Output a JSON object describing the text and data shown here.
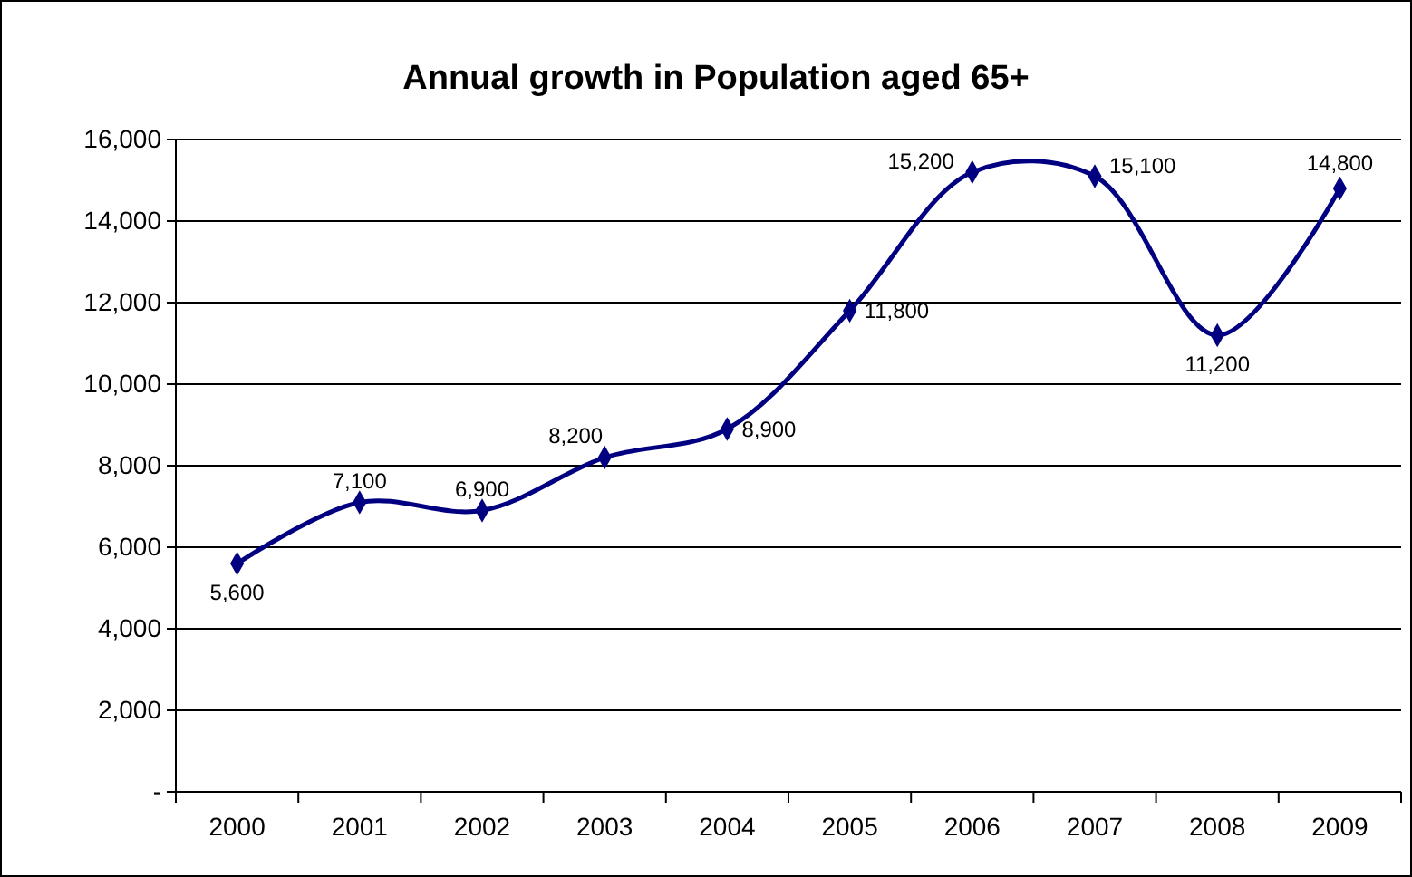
{
  "chart_data": {
    "type": "line",
    "title": "Annual growth in Population aged 65+",
    "categories": [
      "2000",
      "2001",
      "2002",
      "2003",
      "2004",
      "2005",
      "2006",
      "2007",
      "2008",
      "2009"
    ],
    "series": [
      {
        "color": "#000080",
        "values": [
          5600,
          7100,
          6900,
          8200,
          8900,
          11800,
          15200,
          15100,
          11200,
          14800
        ],
        "value_labels": [
          "5,600",
          "7,100",
          "6,900",
          "8,200",
          "8,900",
          "11,800",
          "15,200",
          "15,100",
          "11,200",
          "14,800"
        ]
      }
    ],
    "ylim": [
      0,
      16000
    ],
    "yticks": [
      {
        "value": 0,
        "label": "-"
      },
      {
        "value": 2000,
        "label": "2,000"
      },
      {
        "value": 4000,
        "label": "4,000"
      },
      {
        "value": 6000,
        "label": "6,000"
      },
      {
        "value": 8000,
        "label": "8,000"
      },
      {
        "value": 10000,
        "label": "10,000"
      },
      {
        "value": 12000,
        "label": "12,000"
      },
      {
        "value": 14000,
        "label": "14,000"
      },
      {
        "value": 16000,
        "label": "16,000"
      }
    ],
    "grid": "y",
    "marker": "diamond",
    "line_style": "solid"
  }
}
